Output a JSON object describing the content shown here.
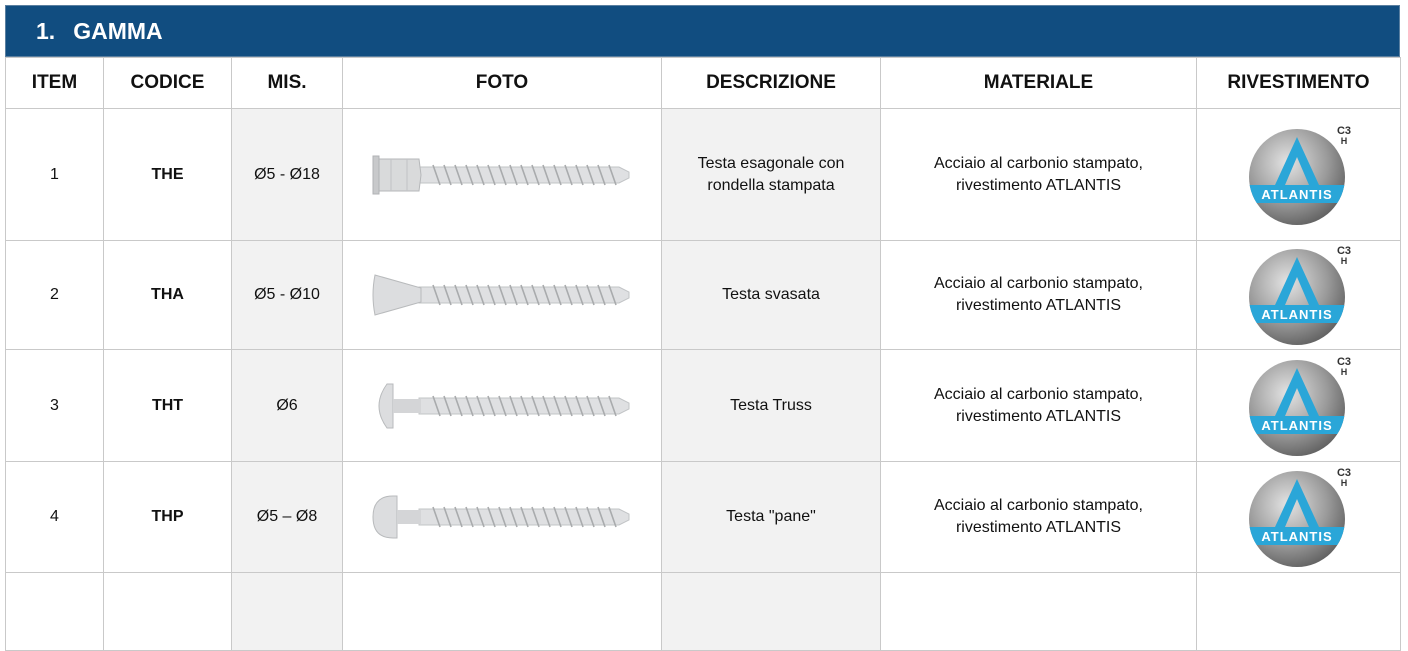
{
  "header": {
    "number": "1.",
    "title": "GAMMA"
  },
  "table": {
    "columns": [
      "ITEM",
      "CODICE",
      "MIS.",
      "FOTO",
      "DESCRIZIONE",
      "MATERIALE",
      "RIVESTIMENTO"
    ],
    "rows": [
      {
        "item": 1,
        "code": "THE",
        "size": "Ø5 - Ø18",
        "description": "Testa esagonale con rondella stampata",
        "material": "Acciaio al carbonio stampato, rivestimento ATLANTIS"
      },
      {
        "item": 2,
        "code": "THA",
        "size": "Ø5 - Ø10",
        "description": "Testa svasata",
        "material": "Acciaio al carbonio stampato, rivestimento ATLANTIS"
      },
      {
        "item": 3,
        "code": "THT",
        "size": "Ø6",
        "description": "Testa Truss",
        "material": "Acciaio al carbonio stampato, rivestimento ATLANTIS"
      },
      {
        "item": 4,
        "code": "THP",
        "size": "Ø5 – Ø8",
        "description": "Testa \"pane\"",
        "material": "Acciaio al carbonio stampato, rivestimento ATLANTIS"
      }
    ]
  },
  "logo": {
    "brand": "ATLANTIS",
    "grade": "C3",
    "class": "H"
  }
}
